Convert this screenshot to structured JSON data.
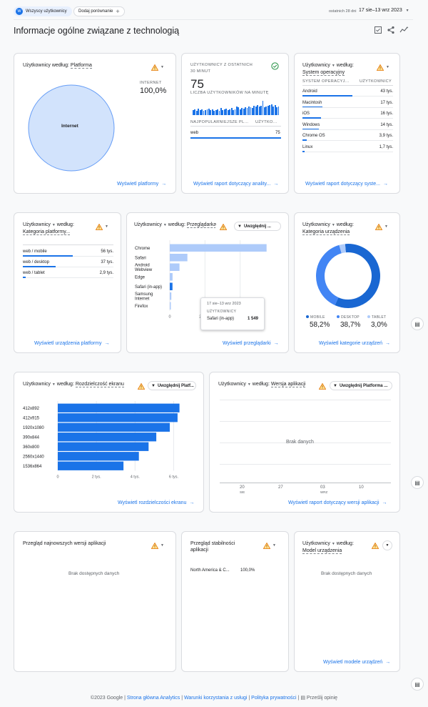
{
  "header": {
    "segment_chip": "Wszyscy użytkownicy",
    "segment_avatar": "W",
    "compare_chip": "Dodaj porównanie",
    "compare_plus": "+",
    "date_prefix": "ostatnich 28 dni",
    "date_range": "17 sie–13 wrz 2023",
    "page_title": "Informacje ogólne związane z technologią"
  },
  "cards": {
    "platform": {
      "title_prefix": "Użytkownicy według:",
      "title_dim": "Platforma",
      "pie_label": "Internet",
      "legend_label": "INTERNET",
      "legend_value": "100,0%",
      "link": "Wyświetl platformy"
    },
    "realtime": {
      "title_line1": "UŻYTKOWNICY Z OSTATNICH",
      "title_line2": "30 MINUT",
      "value": "75",
      "subtitle": "LICZBA UŻYTKOWNIKÓW NA MINUTĘ",
      "bars": [
        0.35,
        0.4,
        0.3,
        0.45,
        0.35,
        0.4,
        0.3,
        0.35,
        0.4,
        0.45,
        0.35,
        0.4,
        0.3,
        0.35,
        0.4,
        0.3,
        0.5,
        0.35,
        0.4,
        0.45,
        0.35,
        0.4,
        0.5,
        0.35,
        0.4,
        0.6,
        0.55,
        0.4,
        0.5,
        0.45,
        0.55,
        0.5,
        0.6,
        0.55,
        0.5,
        0.65,
        0.6,
        0.7,
        0.6,
        0.65,
        1.0,
        0.55,
        0.6,
        0.65,
        0.7,
        0.75,
        0.6,
        0.7,
        0.55,
        0.6
      ],
      "col1": "NAJPOPULARNIEJSZE PL...",
      "col2": "UŻYTKO...",
      "row_label": "web",
      "row_value": "75",
      "link": "Wyświetl raport dotyczący anality..."
    },
    "os": {
      "title_prefix": "Użytkownicy",
      "title_mid": "według:",
      "title_dim": "System operacyjny",
      "col1": "SYSTEM OPERACYJ...",
      "col2": "UŻYTKOWNICY",
      "rows": [
        {
          "label": "Android",
          "value": "43 tys.",
          "frac": 1.0
        },
        {
          "label": "Macintosh",
          "value": "17 tys.",
          "frac": 0.4
        },
        {
          "label": "iOS",
          "value": "16 tys.",
          "frac": 0.37
        },
        {
          "label": "Windows",
          "value": "14 tys.",
          "frac": 0.33
        },
        {
          "label": "Chrome OS",
          "value": "3,9 tys.",
          "frac": 0.09
        },
        {
          "label": "Linux",
          "value": "1,7 tys.",
          "frac": 0.04
        }
      ],
      "link": "Wyświetl raport dotyczący syste..."
    },
    "device_platform": {
      "title_prefix": "Użytkownicy",
      "title_mid": "według:",
      "title_dim": "Kategoria platformy...",
      "rows": [
        {
          "label": "web / mobile",
          "value": "56 tys.",
          "frac": 1.0
        },
        {
          "label": "web / desktop",
          "value": "37 tys.",
          "frac": 0.66
        },
        {
          "label": "web / tablet",
          "value": "2,9 tys.",
          "frac": 0.05
        }
      ],
      "link": "Wyświetl urządzenia platformy"
    },
    "browser": {
      "title_prefix": "Użytkownicy",
      "title_mid": "według:",
      "title_dim": "Przeglądarka",
      "filter_chip": "Uwzględnij ...",
      "link": "Wyświetl przeglądarki",
      "tooltip_date": "17 sie–13 wrz 2023",
      "tooltip_metric": "UŻYTKOWNICY",
      "tooltip_label": "Safari (in-app)",
      "tooltip_value": "1 549"
    },
    "device_category": {
      "title_prefix": "Użytkownicy",
      "title_mid": "według:",
      "title_dim": "Kategoria urządzenia",
      "legend": [
        {
          "label": "MOBILE",
          "value": "58,2%",
          "color": "#1967d2"
        },
        {
          "label": "DESKTOP",
          "value": "38,7%",
          "color": "#4285f4"
        },
        {
          "label": "TABLET",
          "value": "3,0%",
          "color": "#aecbfa"
        }
      ],
      "link": "Wyświetl kategorie urządzeń"
    },
    "resolution": {
      "title_prefix": "Użytkownicy",
      "title_mid": "według:",
      "title_dim": "Rozdzielczość ekranu",
      "filter_chip": "Uwzględnij Platf...",
      "link": "Wyświetl rozdzielczości ekranu"
    },
    "app_version": {
      "title_prefix": "Użytkownicy",
      "title_mid": "według:",
      "title_dim": "Wersja aplikacji",
      "filter_chip": "Uwzględnij Platforma ...",
      "empty": "Brak danych",
      "x_ticks": [
        {
          "label": "20",
          "sub": "SIE"
        },
        {
          "label": "27",
          "sub": ""
        },
        {
          "label": "03",
          "sub": "WRZ"
        },
        {
          "label": "10",
          "sub": ""
        }
      ],
      "link": "Wyświetl raport dotyczący wersji aplikacji"
    },
    "latest_versions": {
      "title": "Przegląd najnowszych wersji aplikacji",
      "empty": "Brak dostępnych danych"
    },
    "stability": {
      "title_line1": "Przegląd stabilności",
      "title_line2": "aplikacji",
      "row_label": "North America & C...",
      "row_value": "100,0%"
    },
    "device_model": {
      "title_prefix": "Użytkownicy",
      "title_mid": "według:",
      "title_dim": "Model urządzenia",
      "empty": "Brak dostępnych danych",
      "link": "Wyświetl modele urządzeń"
    }
  },
  "chart_data": [
    {
      "type": "bar",
      "title": "Użytkownicy według: Przeglądarka",
      "categories": [
        "Chrome",
        "Safari",
        "Android Webview",
        "Edge",
        "Safari (in-app)",
        "Samsung Internet",
        "Firefox"
      ],
      "values": [
        55000,
        10000,
        5500,
        1600,
        1549,
        900,
        400
      ],
      "x_ticks": [
        "0",
        "20 tys.",
        "40 tys."
      ],
      "xlim": [
        0,
        60000
      ],
      "orientation": "horizontal"
    },
    {
      "type": "bar",
      "title": "Użytkownicy według: Rozdzielczość ekranu",
      "categories": [
        "412x892",
        "412x915",
        "1920x1080",
        "390x844",
        "360x800",
        "2560x1440",
        "1536x864"
      ],
      "values": [
        6300,
        6200,
        5800,
        5100,
        4700,
        4200,
        3400
      ],
      "x_ticks": [
        "0",
        "2 tys.",
        "4 tys.",
        "6 tys."
      ],
      "xlim": [
        0,
        6500
      ],
      "orientation": "horizontal"
    },
    {
      "type": "pie",
      "title": "Użytkownicy według: Kategoria urządzenia",
      "categories": [
        "MOBILE",
        "DESKTOP",
        "TABLET"
      ],
      "values": [
        58.2,
        38.7,
        3.0
      ]
    },
    {
      "type": "pie",
      "title": "Użytkownicy według: Platforma",
      "categories": [
        "Internet"
      ],
      "values": [
        100.0
      ]
    }
  ],
  "footer": {
    "copyright": "©2023 Google",
    "link1": "Strona główna Analytics",
    "link2": "Warunki korzystania z usługi",
    "link3": "Polityka prywatności",
    "feedback": "Prześlij opinię",
    "sep": "|"
  },
  "colors": {
    "accent": "#1a73e8",
    "light_bar": "#aecbfa",
    "warning": "#e37400"
  }
}
